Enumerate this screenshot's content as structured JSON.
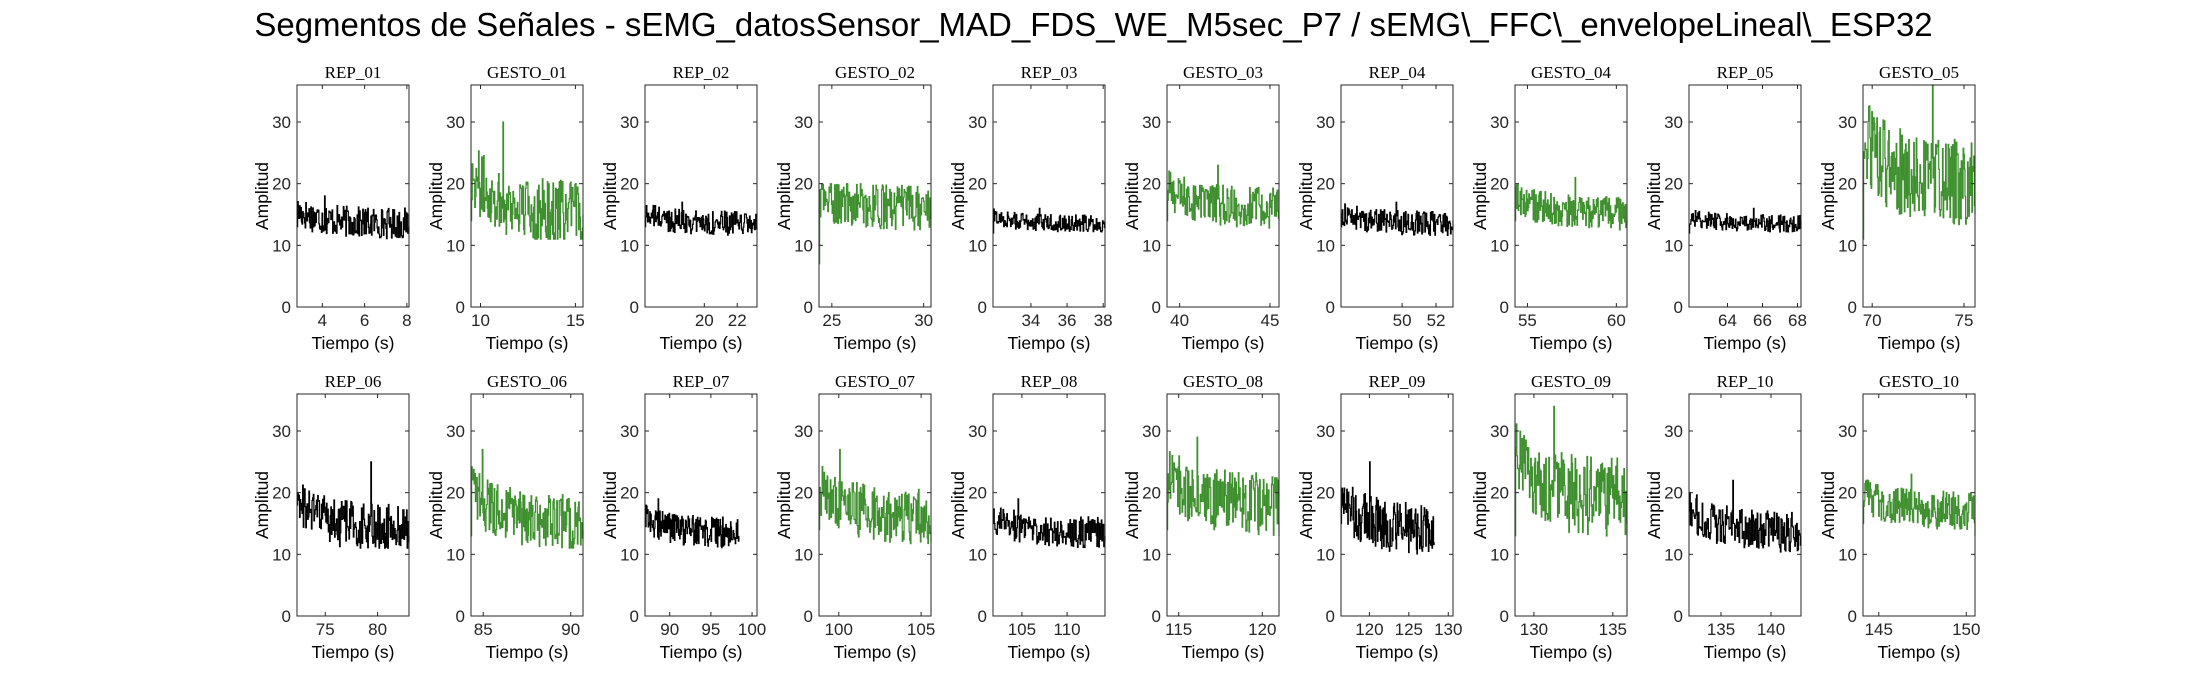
{
  "figure": {
    "title": "Segmentos de Señales - sEMG_datosSensor_MAD_FDS_WE_M5sec_P7 / sEMG\\_FFC\\_envelopeLineal\\_ESP32"
  },
  "colors": {
    "rep": "#000000",
    "gesto": "#3e8f2e",
    "axis": "#262626"
  },
  "chart_data": [
    {
      "type": "line",
      "title": "REP_01",
      "xlabel": "Tiempo (s)",
      "ylabel": "Amplitud",
      "xlim": [
        2.8,
        8.1
      ],
      "ylim": [
        0,
        36
      ],
      "xticks": [
        4,
        6,
        8
      ],
      "yticks": [
        0,
        10,
        20,
        30
      ],
      "series": [
        {
          "x": [
            2.8,
            8.1
          ],
          "values": [
            13,
            13
          ],
          "mean": 13.5,
          "min": 9,
          "max": 18,
          "color": "#000000"
        }
      ]
    },
    {
      "type": "line",
      "title": "GESTO_01",
      "xlabel": "Tiempo (s)",
      "ylabel": "Amplitud",
      "xlim": [
        9.5,
        15.4
      ],
      "ylim": [
        0,
        36
      ],
      "xticks": [
        10,
        15
      ],
      "yticks": [
        0,
        10,
        20,
        30
      ],
      "series": [
        {
          "x": [
            9.5,
            15.4
          ],
          "values": [
            14,
            15
          ],
          "mean": 15,
          "min": 11,
          "max": 30,
          "color": "#3e8f2e"
        }
      ]
    },
    {
      "type": "line",
      "title": "REP_02",
      "xlabel": "Tiempo (s)",
      "ylabel": "Amplitud",
      "xlim": [
        16.4,
        23.2
      ],
      "ylim": [
        0,
        36
      ],
      "xticks": [
        20,
        22
      ],
      "yticks": [
        0,
        10,
        20,
        30
      ],
      "series": [
        {
          "x": [
            16.4,
            23.2
          ],
          "values": [
            13,
            13
          ],
          "mean": 13.5,
          "min": 10,
          "max": 17,
          "color": "#000000"
        }
      ]
    },
    {
      "type": "line",
      "title": "GESTO_02",
      "xlabel": "Tiempo (s)",
      "ylabel": "Amplitud",
      "xlim": [
        24.3,
        30.4
      ],
      "ylim": [
        0,
        36
      ],
      "xticks": [
        25,
        30
      ],
      "yticks": [
        0,
        10,
        20,
        30
      ],
      "series": [
        {
          "x": [
            24.3,
            30.4
          ],
          "values": [
            7,
            15
          ],
          "mean": 16,
          "min": 7,
          "max": 20,
          "color": "#3e8f2e"
        }
      ]
    },
    {
      "type": "line",
      "title": "REP_03",
      "xlabel": "Tiempo (s)",
      "ylabel": "Amplitud",
      "xlim": [
        31.9,
        38.1
      ],
      "ylim": [
        0,
        36
      ],
      "xticks": [
        34,
        36,
        38
      ],
      "yticks": [
        0,
        10,
        20,
        30
      ],
      "series": [
        {
          "x": [
            31.9,
            38.1
          ],
          "values": [
            12,
            14
          ],
          "mean": 13.5,
          "min": 11,
          "max": 16,
          "color": "#000000"
        }
      ]
    },
    {
      "type": "line",
      "title": "GESTO_03",
      "xlabel": "Tiempo (s)",
      "ylabel": "Amplitud",
      "xlim": [
        39.3,
        45.5
      ],
      "ylim": [
        0,
        36
      ],
      "xticks": [
        40,
        45
      ],
      "yticks": [
        0,
        10,
        20,
        30
      ],
      "series": [
        {
          "x": [
            39.3,
            45.5
          ],
          "values": [
            14,
            14
          ],
          "mean": 16,
          "min": 11,
          "max": 23,
          "color": "#3e8f2e"
        }
      ]
    },
    {
      "type": "line",
      "title": "REP_04",
      "xlabel": "Tiempo (s)",
      "ylabel": "Amplitud",
      "xlim": [
        46.4,
        53.0
      ],
      "ylim": [
        0,
        36
      ],
      "xticks": [
        50,
        52
      ],
      "yticks": [
        0,
        10,
        20,
        30
      ],
      "series": [
        {
          "x": [
            46.4,
            53.0
          ],
          "values": [
            13,
            14
          ],
          "mean": 13.5,
          "min": 10,
          "max": 17,
          "color": "#000000"
        }
      ]
    },
    {
      "type": "line",
      "title": "GESTO_04",
      "xlabel": "Tiempo (s)",
      "ylabel": "Amplitud",
      "xlim": [
        54.3,
        60.6
      ],
      "ylim": [
        0,
        36
      ],
      "xticks": [
        55,
        60
      ],
      "yticks": [
        0,
        10,
        20,
        30
      ],
      "series": [
        {
          "x": [
            54.3,
            60.6
          ],
          "values": [
            14,
            14
          ],
          "mean": 15,
          "min": 11,
          "max": 21,
          "color": "#3e8f2e"
        }
      ]
    },
    {
      "type": "line",
      "title": "REP_05",
      "xlabel": "Tiempo (s)",
      "ylabel": "Amplitud",
      "xlim": [
        61.8,
        68.2
      ],
      "ylim": [
        0,
        36
      ],
      "xticks": [
        64,
        66,
        68
      ],
      "yticks": [
        0,
        10,
        20,
        30
      ],
      "series": [
        {
          "x": [
            61.8,
            68.2
          ],
          "values": [
            12,
            14
          ],
          "mean": 13.5,
          "min": 11,
          "max": 16,
          "color": "#000000"
        }
      ]
    },
    {
      "type": "line",
      "title": "GESTO_05",
      "xlabel": "Tiempo (s)",
      "ylabel": "Amplitud",
      "xlim": [
        69.5,
        75.6
      ],
      "ylim": [
        0,
        36
      ],
      "xticks": [
        70,
        75
      ],
      "yticks": [
        0,
        10,
        20,
        30
      ],
      "series": [
        {
          "x": [
            69.5,
            75.6
          ],
          "values": [
            11,
            15
          ],
          "mean": 20,
          "min": 11,
          "max": 36,
          "color": "#3e8f2e"
        }
      ]
    },
    {
      "type": "line",
      "title": "REP_06",
      "xlabel": "Tiempo (s)",
      "ylabel": "Amplitud",
      "xlim": [
        72.3,
        83.0
      ],
      "ylim": [
        0,
        36
      ],
      "xticks": [
        75,
        80
      ],
      "yticks": [
        0,
        10,
        20,
        30
      ],
      "series": [
        {
          "x": [
            72.3,
            83.0
          ],
          "values": [
            18,
            13
          ],
          "mean": 14,
          "min": 11,
          "max": 25,
          "color": "#000000"
        }
      ]
    },
    {
      "type": "line",
      "title": "GESTO_06",
      "xlabel": "Tiempo (s)",
      "ylabel": "Amplitud",
      "xlim": [
        84.3,
        90.7
      ],
      "ylim": [
        0,
        36
      ],
      "xticks": [
        85,
        90
      ],
      "yticks": [
        0,
        10,
        20,
        30
      ],
      "series": [
        {
          "x": [
            84.3,
            90.7
          ],
          "values": [
            13,
            14
          ],
          "mean": 15,
          "min": 11,
          "max": 27,
          "color": "#3e8f2e"
        }
      ]
    },
    {
      "type": "line",
      "title": "REP_07",
      "xlabel": "Tiempo (s)",
      "ylabel": "Amplitud",
      "xlim": [
        87.0,
        100.6
      ],
      "ylim": [
        0,
        36
      ],
      "xticks": [
        90,
        95,
        100
      ],
      "yticks": [
        0,
        10,
        20,
        30
      ],
      "series": [
        {
          "x": [
            87.0,
            98.4
          ],
          "values": [
            15,
            13
          ],
          "mean": 13.5,
          "min": 10,
          "max": 19,
          "color": "#000000"
        }
      ]
    },
    {
      "type": "line",
      "title": "GESTO_07",
      "xlabel": "Tiempo (s)",
      "ylabel": "Amplitud",
      "xlim": [
        98.8,
        105.6
      ],
      "ylim": [
        0,
        36
      ],
      "xticks": [
        100,
        105
      ],
      "yticks": [
        0,
        10,
        20,
        30
      ],
      "series": [
        {
          "x": [
            98.8,
            105.6
          ],
          "values": [
            14,
            12
          ],
          "mean": 16,
          "min": 11,
          "max": 27,
          "color": "#3e8f2e"
        }
      ]
    },
    {
      "type": "line",
      "title": "REP_08",
      "xlabel": "Tiempo (s)",
      "ylabel": "Amplitud",
      "xlim": [
        101.8,
        114.2
      ],
      "ylim": [
        0,
        36
      ],
      "xticks": [
        105,
        110
      ],
      "yticks": [
        0,
        10,
        20,
        30
      ],
      "series": [
        {
          "x": [
            101.8,
            114.2
          ],
          "values": [
            15,
            13
          ],
          "mean": 13.5,
          "min": 10,
          "max": 19,
          "color": "#000000"
        }
      ]
    },
    {
      "type": "line",
      "title": "GESTO_08",
      "xlabel": "Tiempo (s)",
      "ylabel": "Amplitud",
      "xlim": [
        114.3,
        121.0
      ],
      "ylim": [
        0,
        36
      ],
      "xticks": [
        115,
        120
      ],
      "yticks": [
        0,
        10,
        20,
        30
      ],
      "series": [
        {
          "x": [
            114.3,
            121.0
          ],
          "values": [
            14,
            13
          ],
          "mean": 18,
          "min": 11,
          "max": 29,
          "color": "#3e8f2e"
        }
      ]
    },
    {
      "type": "line",
      "title": "REP_09",
      "xlabel": "Tiempo (s)",
      "ylabel": "Amplitud",
      "xlim": [
        116.4,
        130.6
      ],
      "ylim": [
        0,
        36
      ],
      "xticks": [
        120,
        125,
        130
      ],
      "yticks": [
        0,
        10,
        20,
        30
      ],
      "series": [
        {
          "x": [
            116.4,
            128.2
          ],
          "values": [
            15,
            12
          ],
          "mean": 14,
          "min": 10,
          "max": 25,
          "color": "#000000"
        }
      ]
    },
    {
      "type": "line",
      "title": "GESTO_09",
      "xlabel": "Tiempo (s)",
      "ylabel": "Amplitud",
      "xlim": [
        128.8,
        135.9
      ],
      "ylim": [
        0,
        36
      ],
      "xticks": [
        130,
        135
      ],
      "yticks": [
        0,
        10,
        20,
        30
      ],
      "series": [
        {
          "x": [
            128.8,
            135.9
          ],
          "values": [
            13,
            15
          ],
          "mean": 19,
          "min": 11,
          "max": 34,
          "color": "#3e8f2e"
        }
      ]
    },
    {
      "type": "line",
      "title": "REP_10",
      "xlabel": "Tiempo (s)",
      "ylabel": "Amplitud",
      "xlim": [
        131.8,
        143.0
      ],
      "ylim": [
        0,
        36
      ],
      "xticks": [
        135,
        140
      ],
      "yticks": [
        0,
        10,
        20,
        30
      ],
      "series": [
        {
          "x": [
            131.8,
            143.0
          ],
          "values": [
            17,
            13
          ],
          "mean": 13.5,
          "min": 10,
          "max": 22,
          "color": "#000000"
        }
      ]
    },
    {
      "type": "line",
      "title": "GESTO_10",
      "xlabel": "Tiempo (s)",
      "ylabel": "Amplitud",
      "xlim": [
        144.1,
        150.5
      ],
      "ylim": [
        0,
        36
      ],
      "xticks": [
        145,
        150
      ],
      "yticks": [
        0,
        10,
        20,
        30
      ],
      "series": [
        {
          "x": [
            144.1,
            150.5
          ],
          "values": [
            15,
            13
          ],
          "mean": 17,
          "min": 12,
          "max": 23,
          "color": "#3e8f2e"
        }
      ]
    }
  ]
}
